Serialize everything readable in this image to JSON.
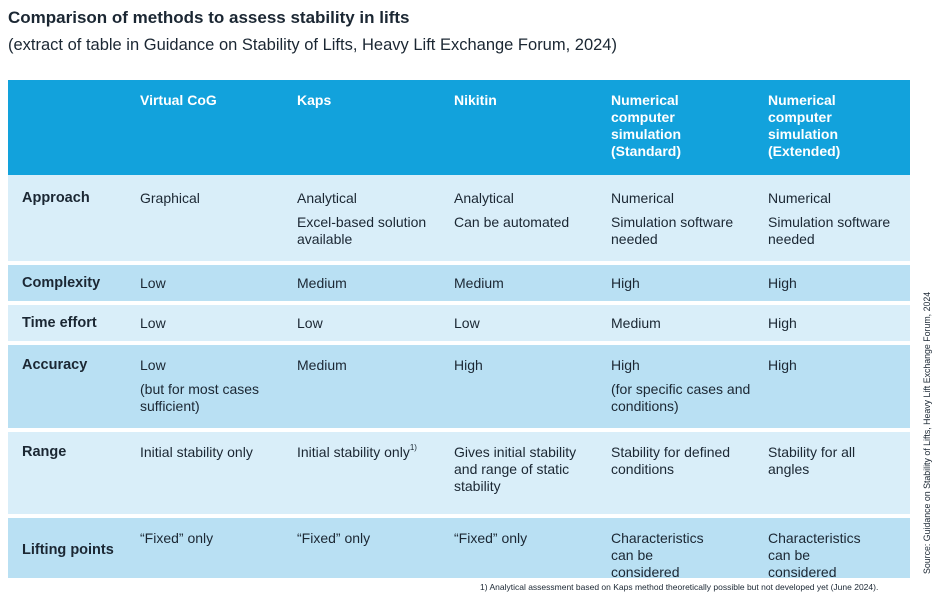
{
  "title": "Comparison of methods to assess stability in lifts",
  "subtitle": "(extract of table in Guidance on Stability of Lifts, Heavy Lift Exchange Forum, 2024)",
  "columns": [
    "",
    "Virtual CoG",
    "Kaps",
    "Nikitin",
    "Numerical computer simulation (Standard)",
    "Numerical computer simulation (Extended)"
  ],
  "column_lines": {
    "standard": [
      "Numerical",
      "computer",
      "simulation",
      "(Standard)"
    ],
    "extended": [
      "Numerical",
      "computer",
      "simulation",
      "(Extended)"
    ]
  },
  "rows": {
    "approach": {
      "label": "Approach",
      "virtual": [
        "Graphical"
      ],
      "kaps": [
        "Analytical",
        "Excel-based solution available"
      ],
      "nikitin": [
        "Analytical",
        "Can be automated"
      ],
      "standard": [
        "Numerical",
        "Simulation software needed"
      ],
      "extended": [
        "Numerical",
        "Simulation software needed"
      ]
    },
    "complexity": {
      "label": "Complexity",
      "virtual": "Low",
      "kaps": "Medium",
      "nikitin": "Medium",
      "standard": "High",
      "extended": "High"
    },
    "time_effort": {
      "label": "Time effort",
      "virtual": "Low",
      "kaps": "Low",
      "nikitin": "Low",
      "standard": "Medium",
      "extended": "High"
    },
    "accuracy": {
      "label": "Accuracy",
      "virtual": [
        "Low",
        "(but for most cases sufficient)"
      ],
      "kaps": [
        "Medium"
      ],
      "nikitin": [
        "High"
      ],
      "standard": [
        "High",
        "(for specific cases and conditions)"
      ],
      "extended": [
        "High"
      ]
    },
    "range": {
      "label": "Range",
      "virtual": "Initial stability only",
      "kaps": "Initial stability only",
      "kaps_footnote_mark": "1)",
      "nikitin": "Gives initial stability and range of static stability",
      "standard": "Stability for defined conditions",
      "extended": "Stability for all angles"
    },
    "lifting_points": {
      "label": "Lifting points",
      "virtual": "“Fixed” only",
      "kaps": "“Fixed” only",
      "nikitin": "“Fixed” only",
      "standard": "Characteristics can be considered",
      "extended": "Characteristics can be considered"
    }
  },
  "footnote": "1)  Analytical assessment based on Kaps method theoretically possible but not developed yet (June 2024).",
  "source": "Source: Guidance on Stability of Lifts, Heavy Lift Exchange Forum, 2024",
  "colors": {
    "header_bg": "#12a2dc",
    "row_light": "#d9eef9",
    "row_mid": "#b9e0f3",
    "text": "#1b2733"
  }
}
